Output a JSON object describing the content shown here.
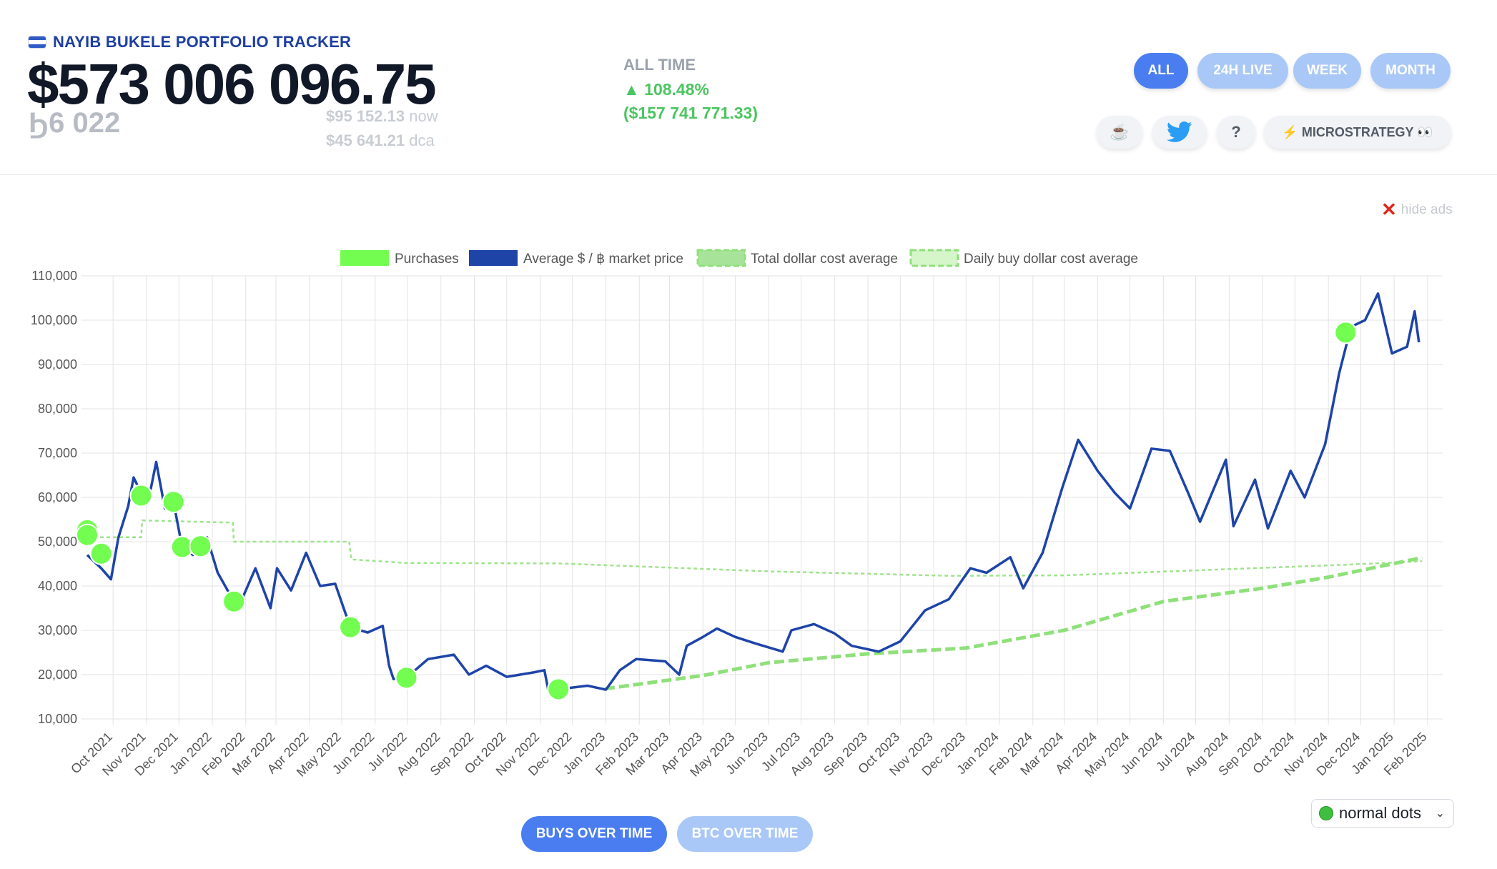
{
  "header": {
    "title": "NAYIB BUKELE PORTFOLIO TRACKER",
    "total_value": "$573 006 096.75",
    "btc_amount": "Ϧ6 022",
    "price_now": "$95 152.13",
    "price_now_suffix": "now",
    "price_dca": "$45 641.21",
    "price_dca_suffix": "dca",
    "alltime_label": "ALL TIME",
    "alltime_pct": "▲ 108.48%",
    "alltime_usd": "($157 741 771.33)"
  },
  "ranges": [
    "ALL",
    "24H LIVE",
    "WEEK",
    "MONTH"
  ],
  "active_range": "ALL",
  "actions": {
    "coffee": "☕",
    "help": "?",
    "microstrategy": "⚡ MICROSTRATEGY 👀"
  },
  "hide_ads": "hide ads",
  "bottom": {
    "buys": "BUYS OVER TIME",
    "btc": "BTC OVER TIME"
  },
  "dots_select": "normal dots",
  "colors": {
    "accent": "#4a7ef0",
    "price_line": "#1e44a8",
    "purchase": "#72fd50",
    "dca": "#8fe07a"
  },
  "chart_data": {
    "type": "line",
    "legend": [
      "Purchases",
      "Average $ / ฿ market price",
      "Total dollar cost average",
      "Daily buy dollar cost average"
    ],
    "legend_position": "top",
    "grid": true,
    "ylim": [
      10000,
      110000
    ],
    "yticks": [
      "10,000",
      "20,000",
      "30,000",
      "40,000",
      "50,000",
      "60,000",
      "70,000",
      "80,000",
      "90,000",
      "100,000",
      "110,000"
    ],
    "xlim": [
      "2021-09-07",
      "2025-02-15"
    ],
    "xticks": [
      "Oct 2021",
      "Nov 2021",
      "Dec 2021",
      "Jan 2022",
      "Feb 2022",
      "Mar 2022",
      "Apr 2022",
      "May 2022",
      "Jun 2022",
      "Jul 2022",
      "Aug 2022",
      "Sep 2022",
      "Oct 2022",
      "Nov 2022",
      "Dec 2022",
      "Jan 2023",
      "Feb 2023",
      "Mar 2023",
      "Apr 2023",
      "May 2023",
      "Jun 2023",
      "Jul 2023",
      "Aug 2023",
      "Sep 2023",
      "Oct 2023",
      "Nov 2023",
      "Dec 2023",
      "Jan 2024",
      "Feb 2024",
      "Mar 2024",
      "Apr 2024",
      "May 2024",
      "Jun 2024",
      "Jul 2024",
      "Aug 2024",
      "Sep 2024",
      "Oct 2024",
      "Nov 2024",
      "Dec 2024",
      "Jan 2025",
      "Feb 2025"
    ],
    "purchases": [
      {
        "x": "2021-09-07",
        "y": 52600
      },
      {
        "x": "2021-09-07",
        "y": 51500
      },
      {
        "x": "2021-09-20",
        "y": 47300
      },
      {
        "x": "2021-10-27",
        "y": 60400
      },
      {
        "x": "2021-11-26",
        "y": 59000
      },
      {
        "x": "2021-12-04",
        "y": 48800
      },
      {
        "x": "2021-12-21",
        "y": 49000
      },
      {
        "x": "2022-01-21",
        "y": 36500
      },
      {
        "x": "2022-05-09",
        "y": 30700
      },
      {
        "x": "2022-06-30",
        "y": 19300
      },
      {
        "x": "2022-11-18",
        "y": 16700
      },
      {
        "x": "2024-11-17",
        "y": 97200
      }
    ],
    "market_price": [
      {
        "x": "2021-09-07",
        "y": 47000
      },
      {
        "x": "2021-09-20",
        "y": 44000
      },
      {
        "x": "2021-09-29",
        "y": 41500
      },
      {
        "x": "2021-10-06",
        "y": 51000
      },
      {
        "x": "2021-10-15",
        "y": 58000
      },
      {
        "x": "2021-10-20",
        "y": 64500
      },
      {
        "x": "2021-10-28",
        "y": 60500
      },
      {
        "x": "2021-11-05",
        "y": 62000
      },
      {
        "x": "2021-11-10",
        "y": 68000
      },
      {
        "x": "2021-11-18",
        "y": 57500
      },
      {
        "x": "2021-11-26",
        "y": 59000
      },
      {
        "x": "2021-12-04",
        "y": 48800
      },
      {
        "x": "2021-12-14",
        "y": 47000
      },
      {
        "x": "2021-12-27",
        "y": 51000
      },
      {
        "x": "2022-01-06",
        "y": 43000
      },
      {
        "x": "2022-01-21",
        "y": 36500
      },
      {
        "x": "2022-01-24",
        "y": 34500
      },
      {
        "x": "2022-02-10",
        "y": 44000
      },
      {
        "x": "2022-02-24",
        "y": 35000
      },
      {
        "x": "2022-03-02",
        "y": 44000
      },
      {
        "x": "2022-03-15",
        "y": 39000
      },
      {
        "x": "2022-03-29",
        "y": 47500
      },
      {
        "x": "2022-04-11",
        "y": 40000
      },
      {
        "x": "2022-04-25",
        "y": 40500
      },
      {
        "x": "2022-05-09",
        "y": 30700
      },
      {
        "x": "2022-05-25",
        "y": 29500
      },
      {
        "x": "2022-06-08",
        "y": 31000
      },
      {
        "x": "2022-06-14",
        "y": 22000
      },
      {
        "x": "2022-06-18",
        "y": 19000
      },
      {
        "x": "2022-06-30",
        "y": 19300
      },
      {
        "x": "2022-07-20",
        "y": 23500
      },
      {
        "x": "2022-08-13",
        "y": 24500
      },
      {
        "x": "2022-08-27",
        "y": 20000
      },
      {
        "x": "2022-09-12",
        "y": 22000
      },
      {
        "x": "2022-10-01",
        "y": 19500
      },
      {
        "x": "2022-10-26",
        "y": 20500
      },
      {
        "x": "2022-11-05",
        "y": 21000
      },
      {
        "x": "2022-11-09",
        "y": 16000
      },
      {
        "x": "2022-11-18",
        "y": 16700
      },
      {
        "x": "2022-12-15",
        "y": 17500
      },
      {
        "x": "2023-01-01",
        "y": 16600
      },
      {
        "x": "2023-01-14",
        "y": 21000
      },
      {
        "x": "2023-01-29",
        "y": 23500
      },
      {
        "x": "2023-02-25",
        "y": 23000
      },
      {
        "x": "2023-03-10",
        "y": 20000
      },
      {
        "x": "2023-03-17",
        "y": 26500
      },
      {
        "x": "2023-04-01",
        "y": 28500
      },
      {
        "x": "2023-04-14",
        "y": 30400
      },
      {
        "x": "2023-05-01",
        "y": 28500
      },
      {
        "x": "2023-05-20",
        "y": 27000
      },
      {
        "x": "2023-06-14",
        "y": 25200
      },
      {
        "x": "2023-06-22",
        "y": 30000
      },
      {
        "x": "2023-07-13",
        "y": 31400
      },
      {
        "x": "2023-08-01",
        "y": 29300
      },
      {
        "x": "2023-08-17",
        "y": 26500
      },
      {
        "x": "2023-09-11",
        "y": 25200
      },
      {
        "x": "2023-10-01",
        "y": 27500
      },
      {
        "x": "2023-10-24",
        "y": 34500
      },
      {
        "x": "2023-11-15",
        "y": 37000
      },
      {
        "x": "2023-12-05",
        "y": 44000
      },
      {
        "x": "2023-12-20",
        "y": 43000
      },
      {
        "x": "2024-01-11",
        "y": 46500
      },
      {
        "x": "2024-01-23",
        "y": 39500
      },
      {
        "x": "2024-02-10",
        "y": 47500
      },
      {
        "x": "2024-02-28",
        "y": 62000
      },
      {
        "x": "2024-03-14",
        "y": 73000
      },
      {
        "x": "2024-04-01",
        "y": 66000
      },
      {
        "x": "2024-04-17",
        "y": 61000
      },
      {
        "x": "2024-05-01",
        "y": 57500
      },
      {
        "x": "2024-05-21",
        "y": 71000
      },
      {
        "x": "2024-06-07",
        "y": 70500
      },
      {
        "x": "2024-06-24",
        "y": 61000
      },
      {
        "x": "2024-07-05",
        "y": 54500
      },
      {
        "x": "2024-07-29",
        "y": 68500
      },
      {
        "x": "2024-08-05",
        "y": 53500
      },
      {
        "x": "2024-08-25",
        "y": 64000
      },
      {
        "x": "2024-09-06",
        "y": 53000
      },
      {
        "x": "2024-09-27",
        "y": 66000
      },
      {
        "x": "2024-10-10",
        "y": 60000
      },
      {
        "x": "2024-10-29",
        "y": 72000
      },
      {
        "x": "2024-11-11",
        "y": 88000
      },
      {
        "x": "2024-11-22",
        "y": 98500
      },
      {
        "x": "2024-12-05",
        "y": 100000
      },
      {
        "x": "2024-12-17",
        "y": 106000
      },
      {
        "x": "2024-12-30",
        "y": 92500
      },
      {
        "x": "2025-01-13",
        "y": 94000
      },
      {
        "x": "2025-01-20",
        "y": 102000
      },
      {
        "x": "2025-01-24",
        "y": 95000
      }
    ],
    "total_dca": [
      {
        "x": "2022-12-31",
        "y": 16800
      },
      {
        "x": "2023-04-01",
        "y": 19800
      },
      {
        "x": "2023-06-01",
        "y": 22700
      },
      {
        "x": "2023-09-01",
        "y": 24700
      },
      {
        "x": "2023-12-01",
        "y": 26000
      },
      {
        "x": "2024-03-01",
        "y": 30000
      },
      {
        "x": "2024-06-01",
        "y": 36500
      },
      {
        "x": "2024-09-01",
        "y": 39500
      },
      {
        "x": "2024-11-01",
        "y": 42000
      },
      {
        "x": "2025-01-27",
        "y": 46400
      }
    ],
    "daily_dca": [
      {
        "x": "2021-09-07",
        "y": 51000
      },
      {
        "x": "2021-10-27",
        "y": 51000
      },
      {
        "x": "2021-10-28",
        "y": 54800
      },
      {
        "x": "2022-01-20",
        "y": 54300
      },
      {
        "x": "2022-01-21",
        "y": 50000
      },
      {
        "x": "2022-05-08",
        "y": 50000
      },
      {
        "x": "2022-05-10",
        "y": 46000
      },
      {
        "x": "2022-06-30",
        "y": 45200
      },
      {
        "x": "2022-11-18",
        "y": 45100
      },
      {
        "x": "2023-06-01",
        "y": 43300
      },
      {
        "x": "2023-11-15",
        "y": 42300
      },
      {
        "x": "2024-03-01",
        "y": 42400
      },
      {
        "x": "2024-11-17",
        "y": 44800
      },
      {
        "x": "2025-01-27",
        "y": 45600
      }
    ]
  }
}
